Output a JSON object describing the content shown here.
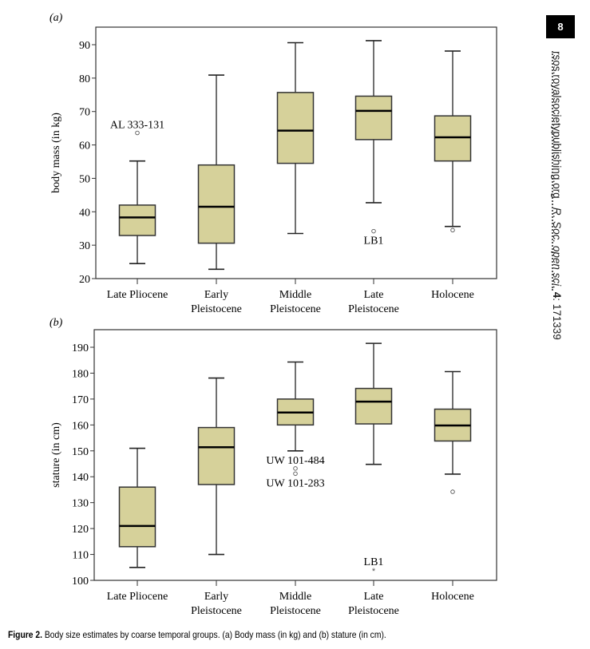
{
  "page": {
    "page_number": "8",
    "journal_url": "rsos.royalsocietypublishing.org",
    "journal_ref_italic": "R. Soc. open sci.",
    "journal_ref_volume": "4",
    "journal_ref_article": ": 171339",
    "caption_label": "Figure 2.",
    "caption_text": " Body size estimates by coarse temporal groups. (a) Body mass (in kg) and (b) stature (in cm)."
  },
  "colors": {
    "box_fill": "#d6d19a",
    "stroke": "#222222"
  },
  "chart_data": [
    {
      "type": "box",
      "panel_label": "(a)",
      "ylabel": "body mass (in kg)",
      "ylim": [
        20,
        95
      ],
      "yticks": [
        20,
        30,
        40,
        50,
        60,
        70,
        80,
        90
      ],
      "categories": [
        [
          "Late Pliocene"
        ],
        [
          "Early",
          "Pleistocene"
        ],
        [
          "Middle",
          "Pleistocene"
        ],
        [
          "Late",
          "Pleistocene"
        ],
        [
          "Holocene"
        ]
      ],
      "boxes": [
        {
          "whisker_low": 24.5,
          "q1": 32.9,
          "median": 38.3,
          "q3": 42.0,
          "whisker_high": 55.2
        },
        {
          "whisker_low": 22.8,
          "q1": 30.6,
          "median": 41.5,
          "q3": 54.0,
          "whisker_high": 80.9
        },
        {
          "whisker_low": 33.5,
          "q1": 54.5,
          "median": 64.3,
          "q3": 75.7,
          "whisker_high": 90.6
        },
        {
          "whisker_low": 42.7,
          "q1": 61.6,
          "median": 70.2,
          "q3": 74.6,
          "whisker_high": 91.2
        },
        {
          "whisker_low": 35.6,
          "q1": 55.2,
          "median": 62.3,
          "q3": 68.7,
          "whisker_high": 88.1
        }
      ],
      "outliers": [
        {
          "category": 0,
          "value": 63.6,
          "marker": "circle",
          "label": "AL 333-131",
          "label_pos": "above"
        },
        {
          "category": 3,
          "value": 34.2,
          "marker": "circle",
          "label": "LB1",
          "label_pos": "below"
        },
        {
          "category": 4,
          "value": 34.5,
          "marker": "circle",
          "label": "",
          "label_pos": "none"
        }
      ]
    },
    {
      "type": "box",
      "panel_label": "(b)",
      "ylabel": "stature (in cm)",
      "ylim": [
        100,
        197
      ],
      "yticks": [
        100,
        110,
        120,
        130,
        140,
        150,
        160,
        170,
        180,
        190
      ],
      "categories": [
        [
          "Late Pliocene"
        ],
        [
          "Early",
          "Pleistocene"
        ],
        [
          "Middle",
          "Pleistocene"
        ],
        [
          "Late",
          "Pleistocene"
        ],
        [
          "Holocene"
        ]
      ],
      "boxes": [
        {
          "whisker_low": 105.0,
          "q1": 113.0,
          "median": 121.0,
          "q3": 136.0,
          "whisker_high": 151.0
        },
        {
          "whisker_low": 110.0,
          "q1": 137.0,
          "median": 151.4,
          "q3": 159.0,
          "whisker_high": 178.1
        },
        {
          "whisker_low": 150.0,
          "q1": 160.0,
          "median": 164.8,
          "q3": 170.0,
          "whisker_high": 184.3
        },
        {
          "whisker_low": 144.8,
          "q1": 160.4,
          "median": 169.0,
          "q3": 174.1,
          "whisker_high": 191.5
        },
        {
          "whisker_low": 141.0,
          "q1": 153.8,
          "median": 159.8,
          "q3": 166.1,
          "whisker_high": 180.6
        }
      ],
      "outliers": [
        {
          "category": 2,
          "value": 143.2,
          "marker": "circle",
          "label": "UW 101-484",
          "label_pos": "above"
        },
        {
          "category": 2,
          "value": 141.2,
          "marker": "circle",
          "label": "UW 101-283",
          "label_pos": "below"
        },
        {
          "category": 3,
          "value": 104.0,
          "marker": "star",
          "label": "LB1",
          "label_pos": "above"
        },
        {
          "category": 4,
          "value": 134.2,
          "marker": "circle",
          "label": "",
          "label_pos": "none"
        }
      ]
    }
  ]
}
